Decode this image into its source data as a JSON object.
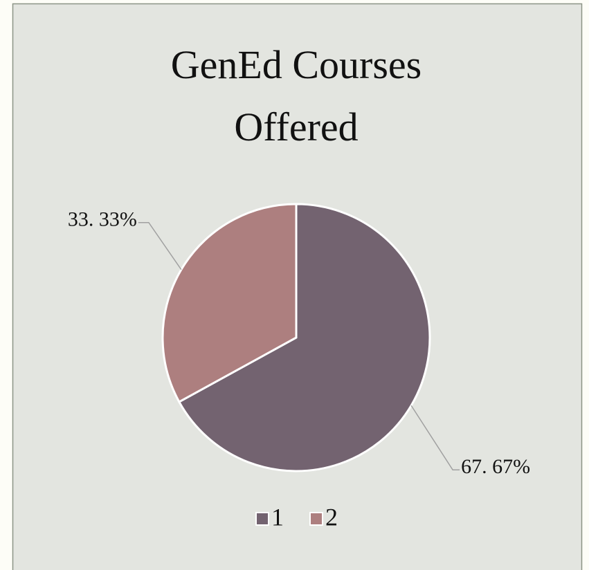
{
  "chart_data": {
    "type": "pie",
    "title": "GenEd Courses Offered",
    "categories": [
      "1",
      "2"
    ],
    "values": [
      67.67,
      33.33
    ],
    "value_labels": [
      "67. 67%",
      "33. 33%"
    ],
    "colors": [
      "#736370",
      "#ad7f7f"
    ],
    "legend": "bottom"
  }
}
